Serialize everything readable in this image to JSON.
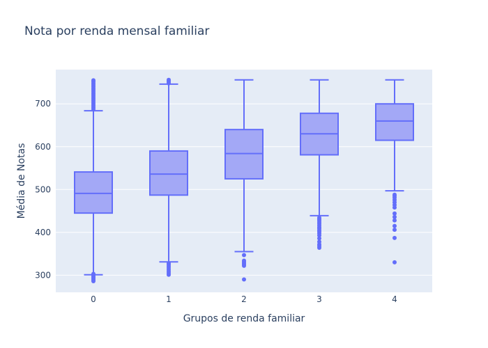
{
  "chart_data": {
    "type": "box",
    "title": "Nota por renda mensal familiar",
    "xlabel": "Grupos de renda familiar",
    "ylabel": "Média de Notas",
    "categories": [
      "0",
      "1",
      "2",
      "3",
      "4"
    ],
    "ylim": [
      260,
      780
    ],
    "yticks": [
      300,
      400,
      500,
      600,
      700
    ],
    "grid": true,
    "colors": {
      "box_line": "#636efa",
      "box_fill": "#a3a8f6",
      "plot_bg": "#e5ecf6",
      "grid": "#ffffff",
      "text": "#2a3f5f"
    },
    "boxes": [
      {
        "category": "0",
        "min": 301,
        "q1": 445,
        "median": 491,
        "q3": 541,
        "max": 684,
        "outliers": [
          286,
          289,
          292,
          295,
          298,
          303,
          688,
          692,
          696,
          700,
          704,
          708,
          712,
          716,
          720,
          724,
          728,
          732,
          736,
          740,
          744,
          748,
          752,
          755
        ]
      },
      {
        "category": "1",
        "min": 331,
        "q1": 487,
        "median": 536,
        "q3": 590,
        "max": 746,
        "outliers": [
          301,
          305,
          309,
          313,
          317,
          321,
          325,
          328,
          748,
          751,
          754,
          756
        ]
      },
      {
        "category": "2",
        "min": 355,
        "q1": 525,
        "median": 584,
        "q3": 640,
        "max": 756,
        "outliers": [
          290,
          322,
          325,
          328,
          331,
          334,
          347
        ]
      },
      {
        "category": "3",
        "min": 439,
        "q1": 581,
        "median": 630,
        "q3": 678,
        "max": 756,
        "outliers": [
          364,
          368,
          372,
          378,
          386,
          393,
          398,
          402,
          405,
          409,
          412,
          416,
          420,
          424,
          428,
          431,
          434
        ]
      },
      {
        "category": "4",
        "min": 497,
        "q1": 615,
        "median": 660,
        "q3": 700,
        "max": 756,
        "outliers": [
          330,
          387,
          406,
          415,
          428,
          436,
          444,
          458,
          464,
          470,
          476,
          481,
          485,
          488
        ]
      }
    ]
  }
}
